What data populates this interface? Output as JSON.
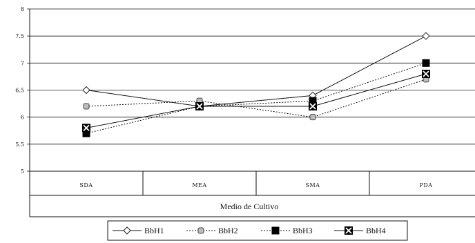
{
  "chart_data": {
    "type": "line",
    "categories": [
      "SDA",
      "MEA",
      "SMA",
      "PDA"
    ],
    "xlabel": "Medio de Cultivo",
    "ylabel": "",
    "ylim": [
      5,
      8
    ],
    "yticks": [
      "5",
      "5.5",
      "6",
      "6.5",
      "7",
      "7.5",
      "8"
    ],
    "grid": true,
    "legend": "bottom",
    "series": [
      {
        "name": "BbH1",
        "values": [
          6.5,
          6.2,
          6.4,
          7.5
        ],
        "marker": "diamond-open",
        "dash": "solid"
      },
      {
        "name": "BbH2",
        "values": [
          6.2,
          6.3,
          6.0,
          6.7
        ],
        "marker": "square-grey",
        "dash": "dotted"
      },
      {
        "name": "BbH3",
        "values": [
          5.7,
          6.2,
          6.3,
          7.0
        ],
        "marker": "square-filled",
        "dash": "dotted"
      },
      {
        "name": "BbH4",
        "values": [
          5.8,
          6.2,
          6.2,
          6.8
        ],
        "marker": "square-x",
        "dash": "solid"
      }
    ]
  }
}
